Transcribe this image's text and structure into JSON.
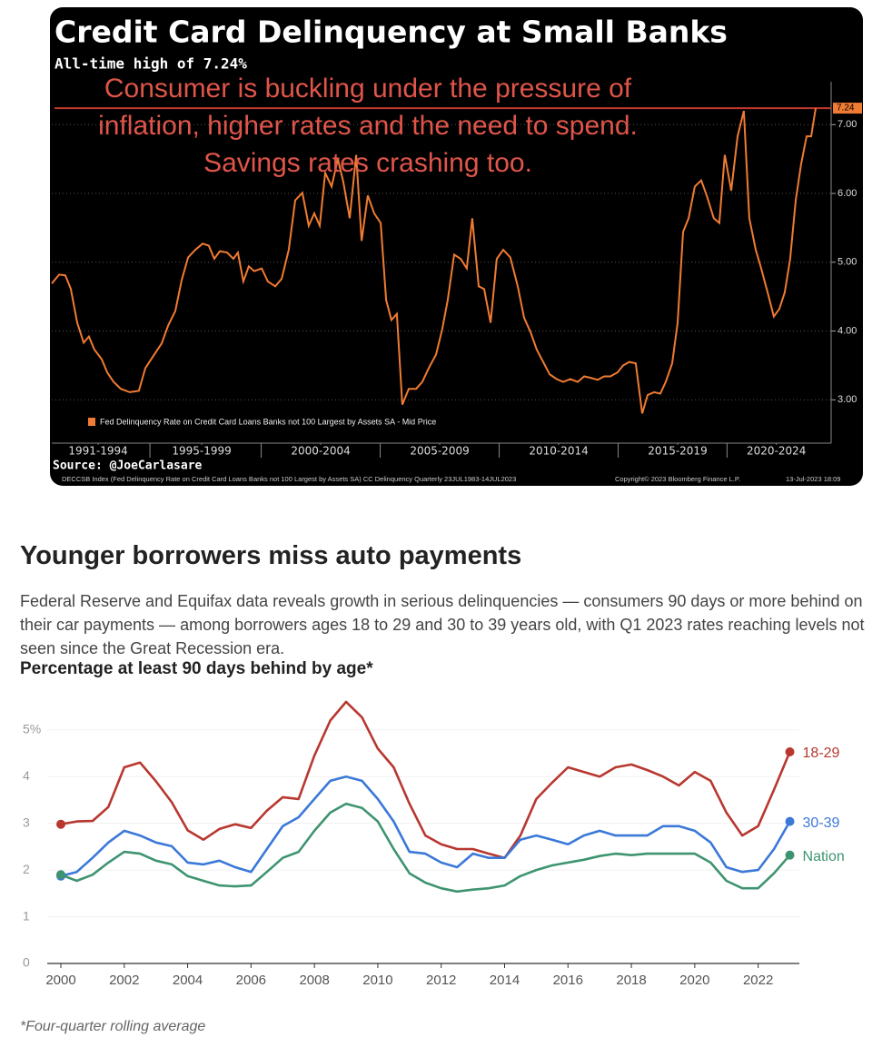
{
  "chart_data": [
    {
      "type": "line",
      "title": "Credit Card Delinquency at Small Banks",
      "subtitle": "All-time high of 7.24%",
      "annotation": [
        "Consumer is buckling under the pressure of",
        "inflation, higher rates and the need to spend.",
        "Savings rates crashing too."
      ],
      "source": "Source: @JoeCarlasare",
      "footnote": [
        "DECCSB Index (Fed Delinquency Rate on Credit Card Loans Banks not 100 Largest by Assets SA) CC Delinquency  Quarterly 23JUL1983-14JUL2023",
        "Copyright© 2023 Bloomberg Finance L.P.",
        "13-Jul-2023 18:09"
      ],
      "x": [
        1991.2,
        1991.51,
        1991.77,
        1992.0,
        1992.27,
        1992.54,
        1992.76,
        1992.99,
        1993.3,
        1993.53,
        1993.8,
        1994.1,
        1994.48,
        1994.86,
        1995.13,
        1995.51,
        1995.82,
        1996.09,
        1996.39,
        1996.66,
        1996.93,
        1997.23,
        1997.54,
        1997.8,
        1998.03,
        1998.26,
        1998.57,
        1998.83,
        1999.02,
        1999.25,
        1999.48,
        1999.71,
        2000.02,
        2000.28,
        2000.59,
        2000.86,
        2001.16,
        2001.43,
        2001.73,
        2002.0,
        2002.23,
        2002.46,
        2002.69,
        2002.96,
        2003.22,
        2003.45,
        2003.72,
        2003.99,
        2004.22,
        2004.48,
        2004.75,
        2005.02,
        2005.25,
        2005.47,
        2005.7,
        2005.93,
        2006.2,
        2006.51,
        2006.77,
        2007.04,
        2007.35,
        2007.61,
        2007.84,
        2008.11,
        2008.38,
        2008.64,
        2008.87,
        2009.14,
        2009.37,
        2009.64,
        2009.9,
        2010.17,
        2010.47,
        2010.78,
        2011.05,
        2011.31,
        2011.58,
        2011.85,
        2012.12,
        2012.42,
        2012.69,
        2012.99,
        2013.3,
        2013.57,
        2013.83,
        2014.14,
        2014.41,
        2014.67,
        2014.98,
        2015.21,
        2015.47,
        2015.74,
        2016.01,
        2016.24,
        2016.51,
        2016.77,
        2017.0,
        2017.27,
        2017.5,
        2017.73,
        2017.96,
        2018.22,
        2018.49,
        2018.72,
        2019.02,
        2019.25,
        2019.48,
        2019.75,
        2020.02,
        2020.28,
        2020.51,
        2020.78,
        2021.01,
        2021.28,
        2021.54,
        2021.77,
        2022.0,
        2022.23,
        2022.46,
        2022.69,
        2022.92,
        2023.11,
        2023.3
      ],
      "series": [
        {
          "name": "Fed Delinquency Rate on Credit Card Loans Banks not 100 Largest by Assets SA - Mid Price",
          "color": "#f07b32",
          "values": [
            4.69,
            4.82,
            4.81,
            4.61,
            4.12,
            3.83,
            3.92,
            3.73,
            3.59,
            3.4,
            3.26,
            3.16,
            3.11,
            3.13,
            3.46,
            3.66,
            3.82,
            4.08,
            4.29,
            4.74,
            5.07,
            5.18,
            5.27,
            5.24,
            5.05,
            5.16,
            5.14,
            5.05,
            5.14,
            4.72,
            4.94,
            4.87,
            4.91,
            4.72,
            4.65,
            4.76,
            5.18,
            5.9,
            6.01,
            5.53,
            5.71,
            5.53,
            6.3,
            6.1,
            6.5,
            6.17,
            5.64,
            6.56,
            5.31,
            5.97,
            5.71,
            5.57,
            4.45,
            4.16,
            4.25,
            2.93,
            3.16,
            3.16,
            3.26,
            3.46,
            3.66,
            4.03,
            4.45,
            5.11,
            5.05,
            4.91,
            5.64,
            4.65,
            4.61,
            4.12,
            5.05,
            5.18,
            5.07,
            4.65,
            4.19,
            3.99,
            3.73,
            3.55,
            3.37,
            3.3,
            3.26,
            3.3,
            3.26,
            3.34,
            3.32,
            3.29,
            3.34,
            3.34,
            3.4,
            3.5,
            3.55,
            3.53,
            2.8,
            3.07,
            3.11,
            3.09,
            3.26,
            3.53,
            4.12,
            5.44,
            5.64,
            6.1,
            6.19,
            5.97,
            5.64,
            5.57,
            6.56,
            6.04,
            6.83,
            7.2,
            5.64,
            5.18,
            4.91,
            4.56,
            4.21,
            4.32,
            4.56,
            5.05,
            5.9,
            6.43,
            6.83,
            6.83,
            7.24
          ]
        }
      ],
      "xlim": [
        1991.2,
        2023.95
      ],
      "xticks": [
        {
          "value": 1993.15,
          "label": "1991-1994"
        },
        {
          "value": 1997.5,
          "label": "1995-1999"
        },
        {
          "value": 2002.5,
          "label": "2000-2004"
        },
        {
          "value": 2007.5,
          "label": "2005-2009"
        },
        {
          "value": 2012.5,
          "label": "2010-2014"
        },
        {
          "value": 2017.5,
          "label": "2015-2019"
        },
        {
          "value": 2021.65,
          "label": "2020-2024"
        }
      ],
      "ylim": [
        2.37,
        8.68
      ],
      "yticks": [
        {
          "value": 3,
          "label": "3.00"
        },
        {
          "value": 4,
          "label": "4.00"
        },
        {
          "value": 5,
          "label": "5.00"
        },
        {
          "value": 6,
          "label": "6.00"
        },
        {
          "value": 7,
          "label": "7.00"
        }
      ],
      "grid": true
    },
    {
      "type": "line",
      "title": "Younger borrowers miss auto payments",
      "subtitle": "Federal Reserve and Equifax data reveals growth in serious delinquencies — consumers 90 days or more behind on their car payments — among borrowers ages 18 to 29 and 30 to 39 years old, with Q1 2023 rates reaching levels not seen since the Great Recession era.",
      "y_label": "Percentage at least 90 days behind by age*",
      "footnote": "*Four-quarter rolling average",
      "x": [
        2000,
        2000.5,
        2001,
        2001.5,
        2002,
        2002.5,
        2003,
        2003.5,
        2004,
        2004.5,
        2005,
        2005.5,
        2006,
        2006.5,
        2007,
        2007.5,
        2008,
        2008.5,
        2009,
        2009.5,
        2010,
        2010.5,
        2011,
        2011.5,
        2012,
        2012.5,
        2013,
        2013.5,
        2014,
        2014.5,
        2015,
        2015.5,
        2016,
        2016.5,
        2017,
        2017.5,
        2018,
        2018.5,
        2019,
        2019.5,
        2020,
        2020.5,
        2021,
        2021.5,
        2022,
        2022.5,
        2023
      ],
      "series": [
        {
          "name": "18-29",
          "color": "#b8372f",
          "values": [
            2.98,
            3.04,
            3.05,
            3.35,
            4.2,
            4.3,
            3.9,
            3.45,
            2.85,
            2.65,
            2.88,
            2.98,
            2.9,
            3.27,
            3.56,
            3.52,
            4.45,
            5.2,
            5.6,
            5.27,
            4.6,
            4.2,
            3.42,
            2.74,
            2.55,
            2.45,
            2.45,
            2.35,
            2.26,
            2.74,
            3.52,
            3.87,
            4.2,
            4.1,
            4.0,
            4.2,
            4.26,
            4.14,
            4.0,
            3.81,
            4.1,
            3.91,
            3.23,
            2.74,
            2.94,
            3.72,
            4.53
          ]
        },
        {
          "name": "30-39",
          "color": "#3b78d8",
          "values": [
            1.87,
            1.96,
            2.26,
            2.59,
            2.84,
            2.74,
            2.59,
            2.51,
            2.16,
            2.12,
            2.2,
            2.06,
            1.96,
            2.45,
            2.94,
            3.13,
            3.52,
            3.91,
            4.0,
            3.91,
            3.52,
            3.04,
            2.39,
            2.35,
            2.16,
            2.06,
            2.35,
            2.26,
            2.26,
            2.65,
            2.74,
            2.65,
            2.55,
            2.74,
            2.84,
            2.74,
            2.74,
            2.74,
            2.94,
            2.94,
            2.84,
            2.59,
            2.06,
            1.96,
            2.0,
            2.45,
            3.04
          ]
        },
        {
          "name": "Nation",
          "color": "#3e9470",
          "values": [
            1.9,
            1.77,
            1.9,
            2.16,
            2.39,
            2.35,
            2.2,
            2.12,
            1.87,
            1.77,
            1.67,
            1.65,
            1.67,
            1.96,
            2.26,
            2.39,
            2.84,
            3.23,
            3.42,
            3.33,
            3.04,
            2.45,
            1.93,
            1.73,
            1.61,
            1.54,
            1.58,
            1.61,
            1.67,
            1.87,
            2.0,
            2.1,
            2.16,
            2.22,
            2.3,
            2.35,
            2.32,
            2.35,
            2.35,
            2.35,
            2.35,
            2.16,
            1.77,
            1.61,
            1.61,
            1.93,
            2.32
          ]
        }
      ],
      "xlim": [
        1999.57,
        2023.3
      ],
      "xticks": [
        2000,
        2002,
        2004,
        2006,
        2008,
        2010,
        2012,
        2014,
        2016,
        2018,
        2020,
        2022
      ],
      "ylim": [
        0,
        5.56
      ],
      "yticks": [
        0,
        1,
        2,
        3,
        4,
        {
          "value": 5,
          "label": "5%"
        }
      ],
      "grid": true
    }
  ]
}
